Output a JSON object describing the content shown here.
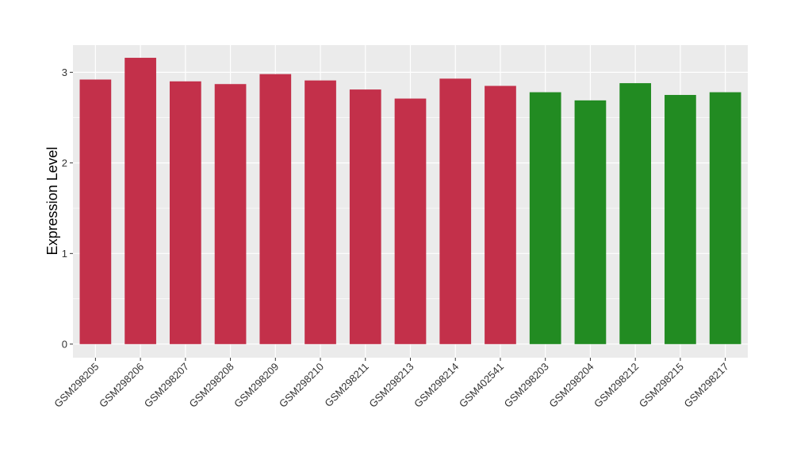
{
  "chart_data": {
    "type": "bar",
    "title": "",
    "xlabel": "",
    "ylabel": "Expression Level",
    "ylim": [
      -0.15,
      3.3
    ],
    "yticks": [
      0,
      1,
      2,
      3
    ],
    "grid": true,
    "legend": "none",
    "categories": [
      "GSM298205",
      "GSM298206",
      "GSM298207",
      "GSM298208",
      "GSM298209",
      "GSM298210",
      "GSM298211",
      "GSM298213",
      "GSM298214",
      "GSM402541",
      "GSM298203",
      "GSM298204",
      "GSM298212",
      "GSM298215",
      "GSM298217"
    ],
    "values": [
      2.92,
      3.16,
      2.9,
      2.87,
      2.98,
      2.91,
      2.81,
      2.71,
      2.93,
      2.85,
      2.78,
      2.69,
      2.88,
      2.75,
      2.78
    ],
    "bar_colors": [
      "#C3304A",
      "#C3304A",
      "#C3304A",
      "#C3304A",
      "#C3304A",
      "#C3304A",
      "#C3304A",
      "#C3304A",
      "#C3304A",
      "#C3304A",
      "#228B22",
      "#228B22",
      "#228B22",
      "#228B22",
      "#228B22"
    ]
  },
  "colors": {
    "panel_background": "#EBEBEB",
    "grid_line": "#FFFFFF",
    "group_a": "#C3304A",
    "group_b": "#228B22"
  }
}
